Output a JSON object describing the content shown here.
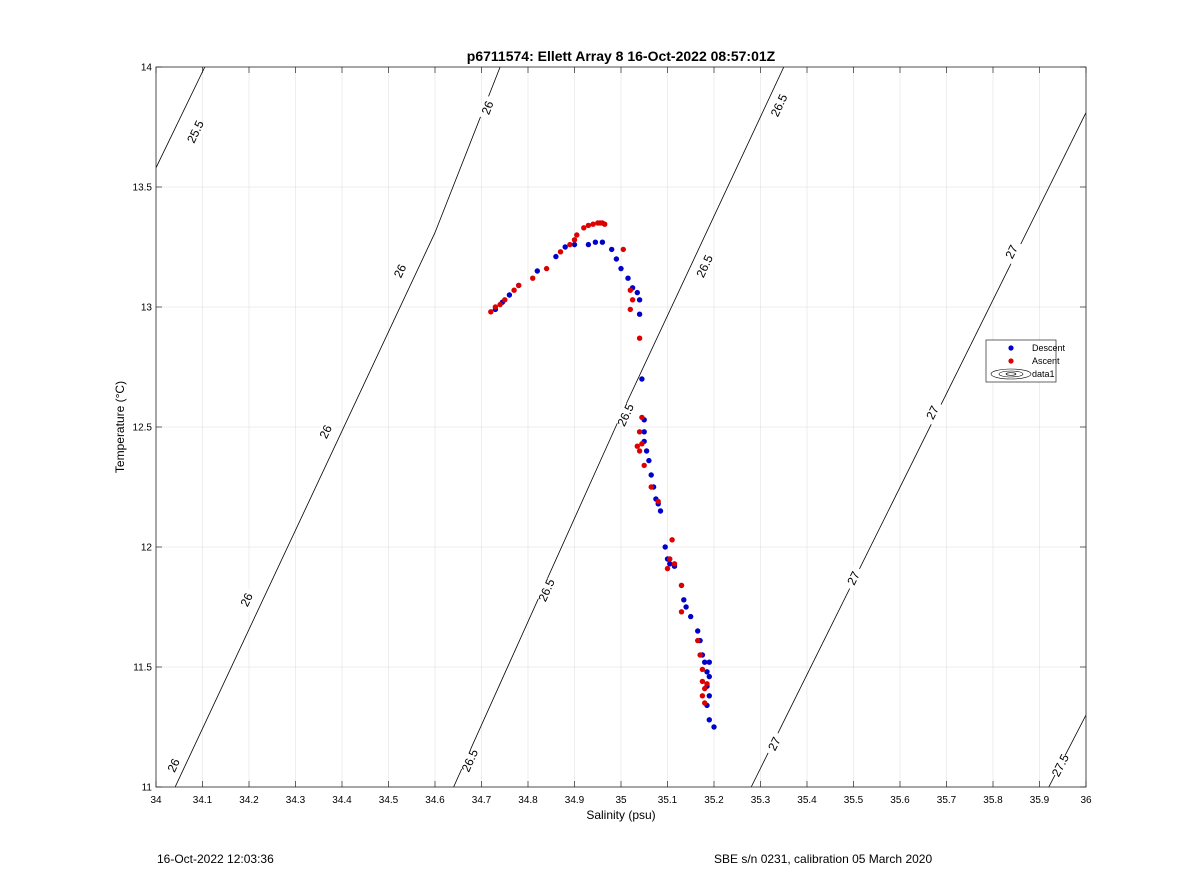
{
  "chart_data": {
    "type": "scatter",
    "title": "p6711574: Ellett Array 8 16-Oct-2022 08:57:01Z",
    "xlabel": "Salinity (psu)",
    "ylabel": "Temperature (°C)",
    "xlim": [
      34,
      36
    ],
    "ylim": [
      11,
      14
    ],
    "grid": true,
    "legend_position": "right",
    "x_ticks": [
      "34",
      "34.1",
      "34.2",
      "34.3",
      "34.4",
      "34.5",
      "34.6",
      "34.7",
      "34.8",
      "34.9",
      "35",
      "35.1",
      "35.2",
      "35.3",
      "35.4",
      "35.5",
      "35.6",
      "35.7",
      "35.8",
      "35.9",
      "36"
    ],
    "y_ticks": [
      "11",
      "11.5",
      "12",
      "12.5",
      "13",
      "13.5",
      "14"
    ],
    "colors": {
      "descent": "#0000cc",
      "ascent": "#dd0000"
    },
    "series": [
      {
        "name": "Descent",
        "points": [
          [
            34.73,
            12.99
          ],
          [
            34.745,
            13.02
          ],
          [
            34.76,
            13.05
          ],
          [
            34.78,
            13.09
          ],
          [
            34.82,
            13.15
          ],
          [
            34.86,
            13.21
          ],
          [
            34.88,
            13.25
          ],
          [
            34.9,
            13.26
          ],
          [
            34.93,
            13.26
          ],
          [
            34.945,
            13.27
          ],
          [
            34.96,
            13.27
          ],
          [
            34.98,
            13.24
          ],
          [
            34.99,
            13.2
          ],
          [
            35.0,
            13.16
          ],
          [
            35.015,
            13.12
          ],
          [
            35.025,
            13.08
          ],
          [
            35.035,
            13.06
          ],
          [
            35.04,
            13.03
          ],
          [
            35.04,
            12.97
          ],
          [
            35.045,
            12.7
          ],
          [
            35.05,
            12.53
          ],
          [
            35.05,
            12.48
          ],
          [
            35.05,
            12.44
          ],
          [
            35.055,
            12.4
          ],
          [
            35.06,
            12.36
          ],
          [
            35.065,
            12.3
          ],
          [
            35.07,
            12.25
          ],
          [
            35.075,
            12.2
          ],
          [
            35.08,
            12.18
          ],
          [
            35.085,
            12.15
          ],
          [
            35.095,
            12.0
          ],
          [
            35.1,
            11.95
          ],
          [
            35.105,
            11.93
          ],
          [
            35.115,
            11.92
          ],
          [
            35.13,
            11.84
          ],
          [
            35.135,
            11.78
          ],
          [
            35.14,
            11.75
          ],
          [
            35.15,
            11.71
          ],
          [
            35.165,
            11.65
          ],
          [
            35.17,
            11.61
          ],
          [
            35.175,
            11.55
          ],
          [
            35.18,
            11.52
          ],
          [
            35.185,
            11.48
          ],
          [
            35.19,
            11.52
          ],
          [
            35.19,
            11.46
          ],
          [
            35.185,
            11.42
          ],
          [
            35.19,
            11.38
          ],
          [
            35.185,
            11.34
          ],
          [
            35.19,
            11.28
          ],
          [
            35.2,
            11.25
          ]
        ]
      },
      {
        "name": "Ascent",
        "points": [
          [
            34.72,
            12.98
          ],
          [
            34.73,
            13.0
          ],
          [
            34.74,
            13.01
          ],
          [
            34.75,
            13.03
          ],
          [
            34.77,
            13.07
          ],
          [
            34.78,
            13.09
          ],
          [
            34.81,
            13.12
          ],
          [
            34.84,
            13.16
          ],
          [
            34.87,
            13.23
          ],
          [
            34.89,
            13.26
          ],
          [
            34.9,
            13.28
          ],
          [
            34.905,
            13.3
          ],
          [
            34.92,
            13.33
          ],
          [
            34.93,
            13.34
          ],
          [
            34.94,
            13.345
          ],
          [
            34.95,
            13.35
          ],
          [
            34.955,
            13.35
          ],
          [
            34.96,
            13.35
          ],
          [
            34.965,
            13.345
          ],
          [
            35.005,
            13.24
          ],
          [
            35.02,
            13.07
          ],
          [
            35.025,
            13.03
          ],
          [
            35.02,
            12.99
          ],
          [
            35.04,
            12.87
          ],
          [
            35.045,
            12.54
          ],
          [
            35.04,
            12.48
          ],
          [
            35.035,
            12.42
          ],
          [
            35.045,
            12.43
          ],
          [
            35.04,
            12.4
          ],
          [
            35.05,
            12.34
          ],
          [
            35.065,
            12.25
          ],
          [
            35.08,
            12.19
          ],
          [
            35.11,
            12.03
          ],
          [
            35.105,
            11.95
          ],
          [
            35.1,
            11.91
          ],
          [
            35.115,
            11.93
          ],
          [
            35.13,
            11.84
          ],
          [
            35.13,
            11.73
          ],
          [
            35.165,
            11.61
          ],
          [
            35.17,
            11.55
          ],
          [
            35.175,
            11.49
          ],
          [
            35.175,
            11.44
          ],
          [
            35.18,
            11.41
          ],
          [
            35.175,
            11.38
          ],
          [
            35.18,
            11.35
          ],
          [
            35.185,
            11.43
          ]
        ]
      }
    ],
    "contours": [
      {
        "level": "25.5",
        "line": [
          [
            34.0,
            13.58
          ],
          [
            34.105,
            14.0
          ]
        ],
        "labels": [
          [
            34.085,
            13.73
          ]
        ]
      },
      {
        "level": "26",
        "line": [
          [
            34.0,
            10.83
          ],
          [
            34.6,
            13.31
          ],
          [
            34.74,
            14.0
          ]
        ],
        "labels": [
          [
            34.038,
            11.09
          ],
          [
            34.195,
            11.78
          ],
          [
            34.365,
            12.48
          ],
          [
            34.525,
            13.15
          ],
          [
            34.713,
            13.83
          ]
        ]
      },
      {
        "level": "26.5",
        "line": [
          [
            34.64,
            11.0
          ],
          [
            35.0,
            12.55
          ],
          [
            35.35,
            14.0
          ]
        ],
        "labels": [
          [
            34.675,
            11.11
          ],
          [
            34.84,
            11.82
          ],
          [
            35.01,
            12.55
          ],
          [
            35.18,
            13.17
          ],
          [
            35.34,
            13.84
          ]
        ]
      },
      {
        "level": "27",
        "line": [
          [
            35.28,
            11.0
          ],
          [
            36.0,
            13.81
          ]
        ],
        "labels": [
          [
            35.33,
            11.18
          ],
          [
            35.5,
            11.87
          ],
          [
            35.67,
            12.56
          ],
          [
            35.84,
            13.23
          ]
        ]
      },
      {
        "level": "27.5",
        "line": [
          [
            35.92,
            11.0
          ],
          [
            36.0,
            11.3
          ]
        ],
        "labels": [
          [
            35.945,
            11.09
          ]
        ]
      }
    ],
    "legend": [
      "Descent",
      "Ascent",
      "data1"
    ]
  },
  "footer": {
    "timestamp": "16-Oct-2022 12:03:36",
    "calibration": "SBE s/n 0231, calibration 05 March 2020"
  }
}
